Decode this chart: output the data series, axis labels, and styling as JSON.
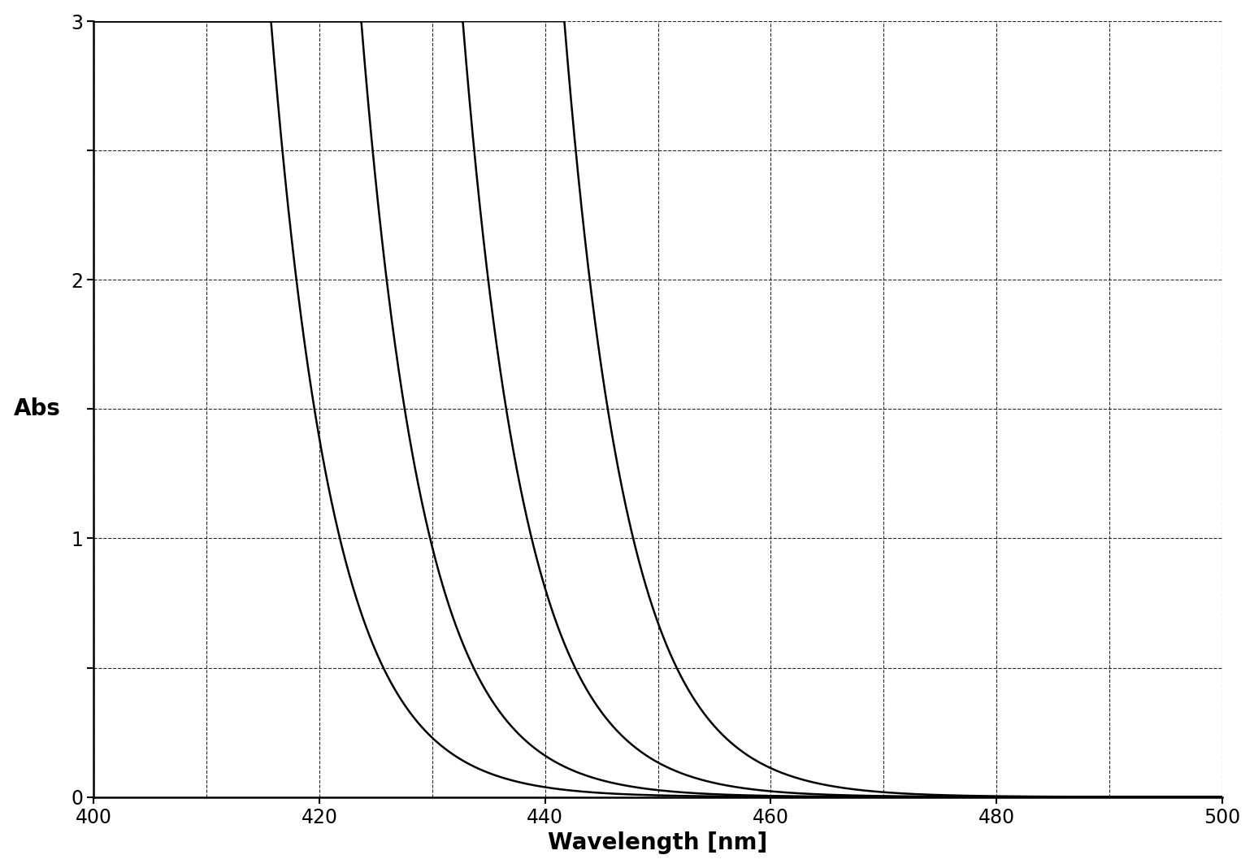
{
  "title": "",
  "xlabel": "Wavelength [nm]",
  "ylabel": "Abs",
  "xlim": [
    400,
    500
  ],
  "ylim": [
    0,
    3
  ],
  "xticks": [
    400,
    420,
    440,
    460,
    480,
    500
  ],
  "yticks": [
    0,
    0.5,
    1.0,
    1.5,
    2.0,
    2.5,
    3.0
  ],
  "ytick_labels": [
    "0",
    "",
    "1",
    "",
    "2",
    "",
    "3"
  ],
  "grid_xticks": [
    400,
    410,
    420,
    430,
    440,
    450,
    460,
    470,
    480,
    490,
    500
  ],
  "background_color": "#ffffff",
  "line_color": "#000000",
  "grid_color": "#000000",
  "curves": [
    {
      "edge": 408,
      "decay": 0.18,
      "scale": 12.0
    },
    {
      "edge": 416,
      "decay": 0.18,
      "scale": 12.0
    },
    {
      "edge": 425,
      "decay": 0.18,
      "scale": 12.0
    },
    {
      "edge": 434,
      "decay": 0.18,
      "scale": 12.0
    }
  ],
  "xlabel_fontsize": 20,
  "ylabel_fontsize": 20,
  "tick_fontsize": 17,
  "line_width": 1.8
}
